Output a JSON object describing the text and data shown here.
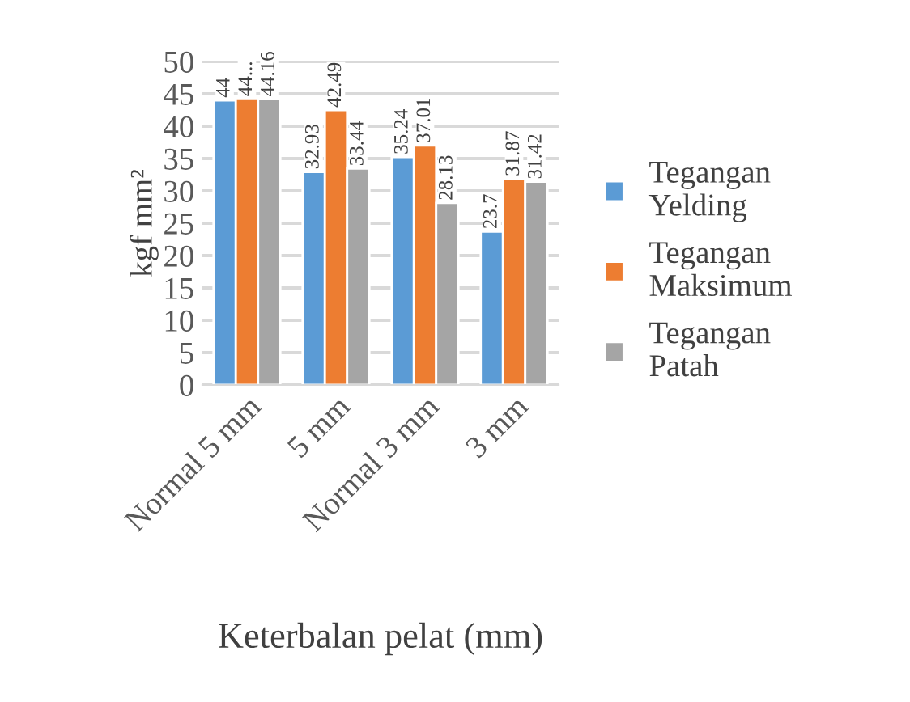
{
  "chart_data": {
    "type": "bar",
    "xlabel": "Keterbalan pelat (mm)",
    "ylabel": "kgf mm²",
    "categories": [
      "Normal 5 mm",
      "5 mm",
      "Normal 3 mm",
      "3 mm"
    ],
    "series": [
      {
        "name": "Tegangan\nYelding",
        "color": "#5b9bd5",
        "values": [
          44,
          32.93,
          35.24,
          23.7
        ],
        "value_labels": [
          "44",
          "32.93",
          "35.24",
          "23.7"
        ]
      },
      {
        "name": "Tegangan\nMaksimum",
        "color": "#ed7d31",
        "values": [
          44.2,
          42.49,
          37.01,
          31.87
        ],
        "value_labels": [
          "44...",
          "42.49",
          "37.01",
          "31.87"
        ]
      },
      {
        "name": "Tegangan\nPatah",
        "color": "#a5a5a5",
        "values": [
          44.16,
          33.44,
          28.13,
          31.42
        ],
        "value_labels": [
          "44.16",
          "33.44",
          "28.13",
          "31.42"
        ]
      }
    ],
    "ylim": [
      0,
      50
    ],
    "yticks": [
      0,
      5,
      10,
      15,
      20,
      25,
      30,
      35,
      40,
      45,
      50
    ],
    "grid": "y",
    "legend": "right"
  }
}
